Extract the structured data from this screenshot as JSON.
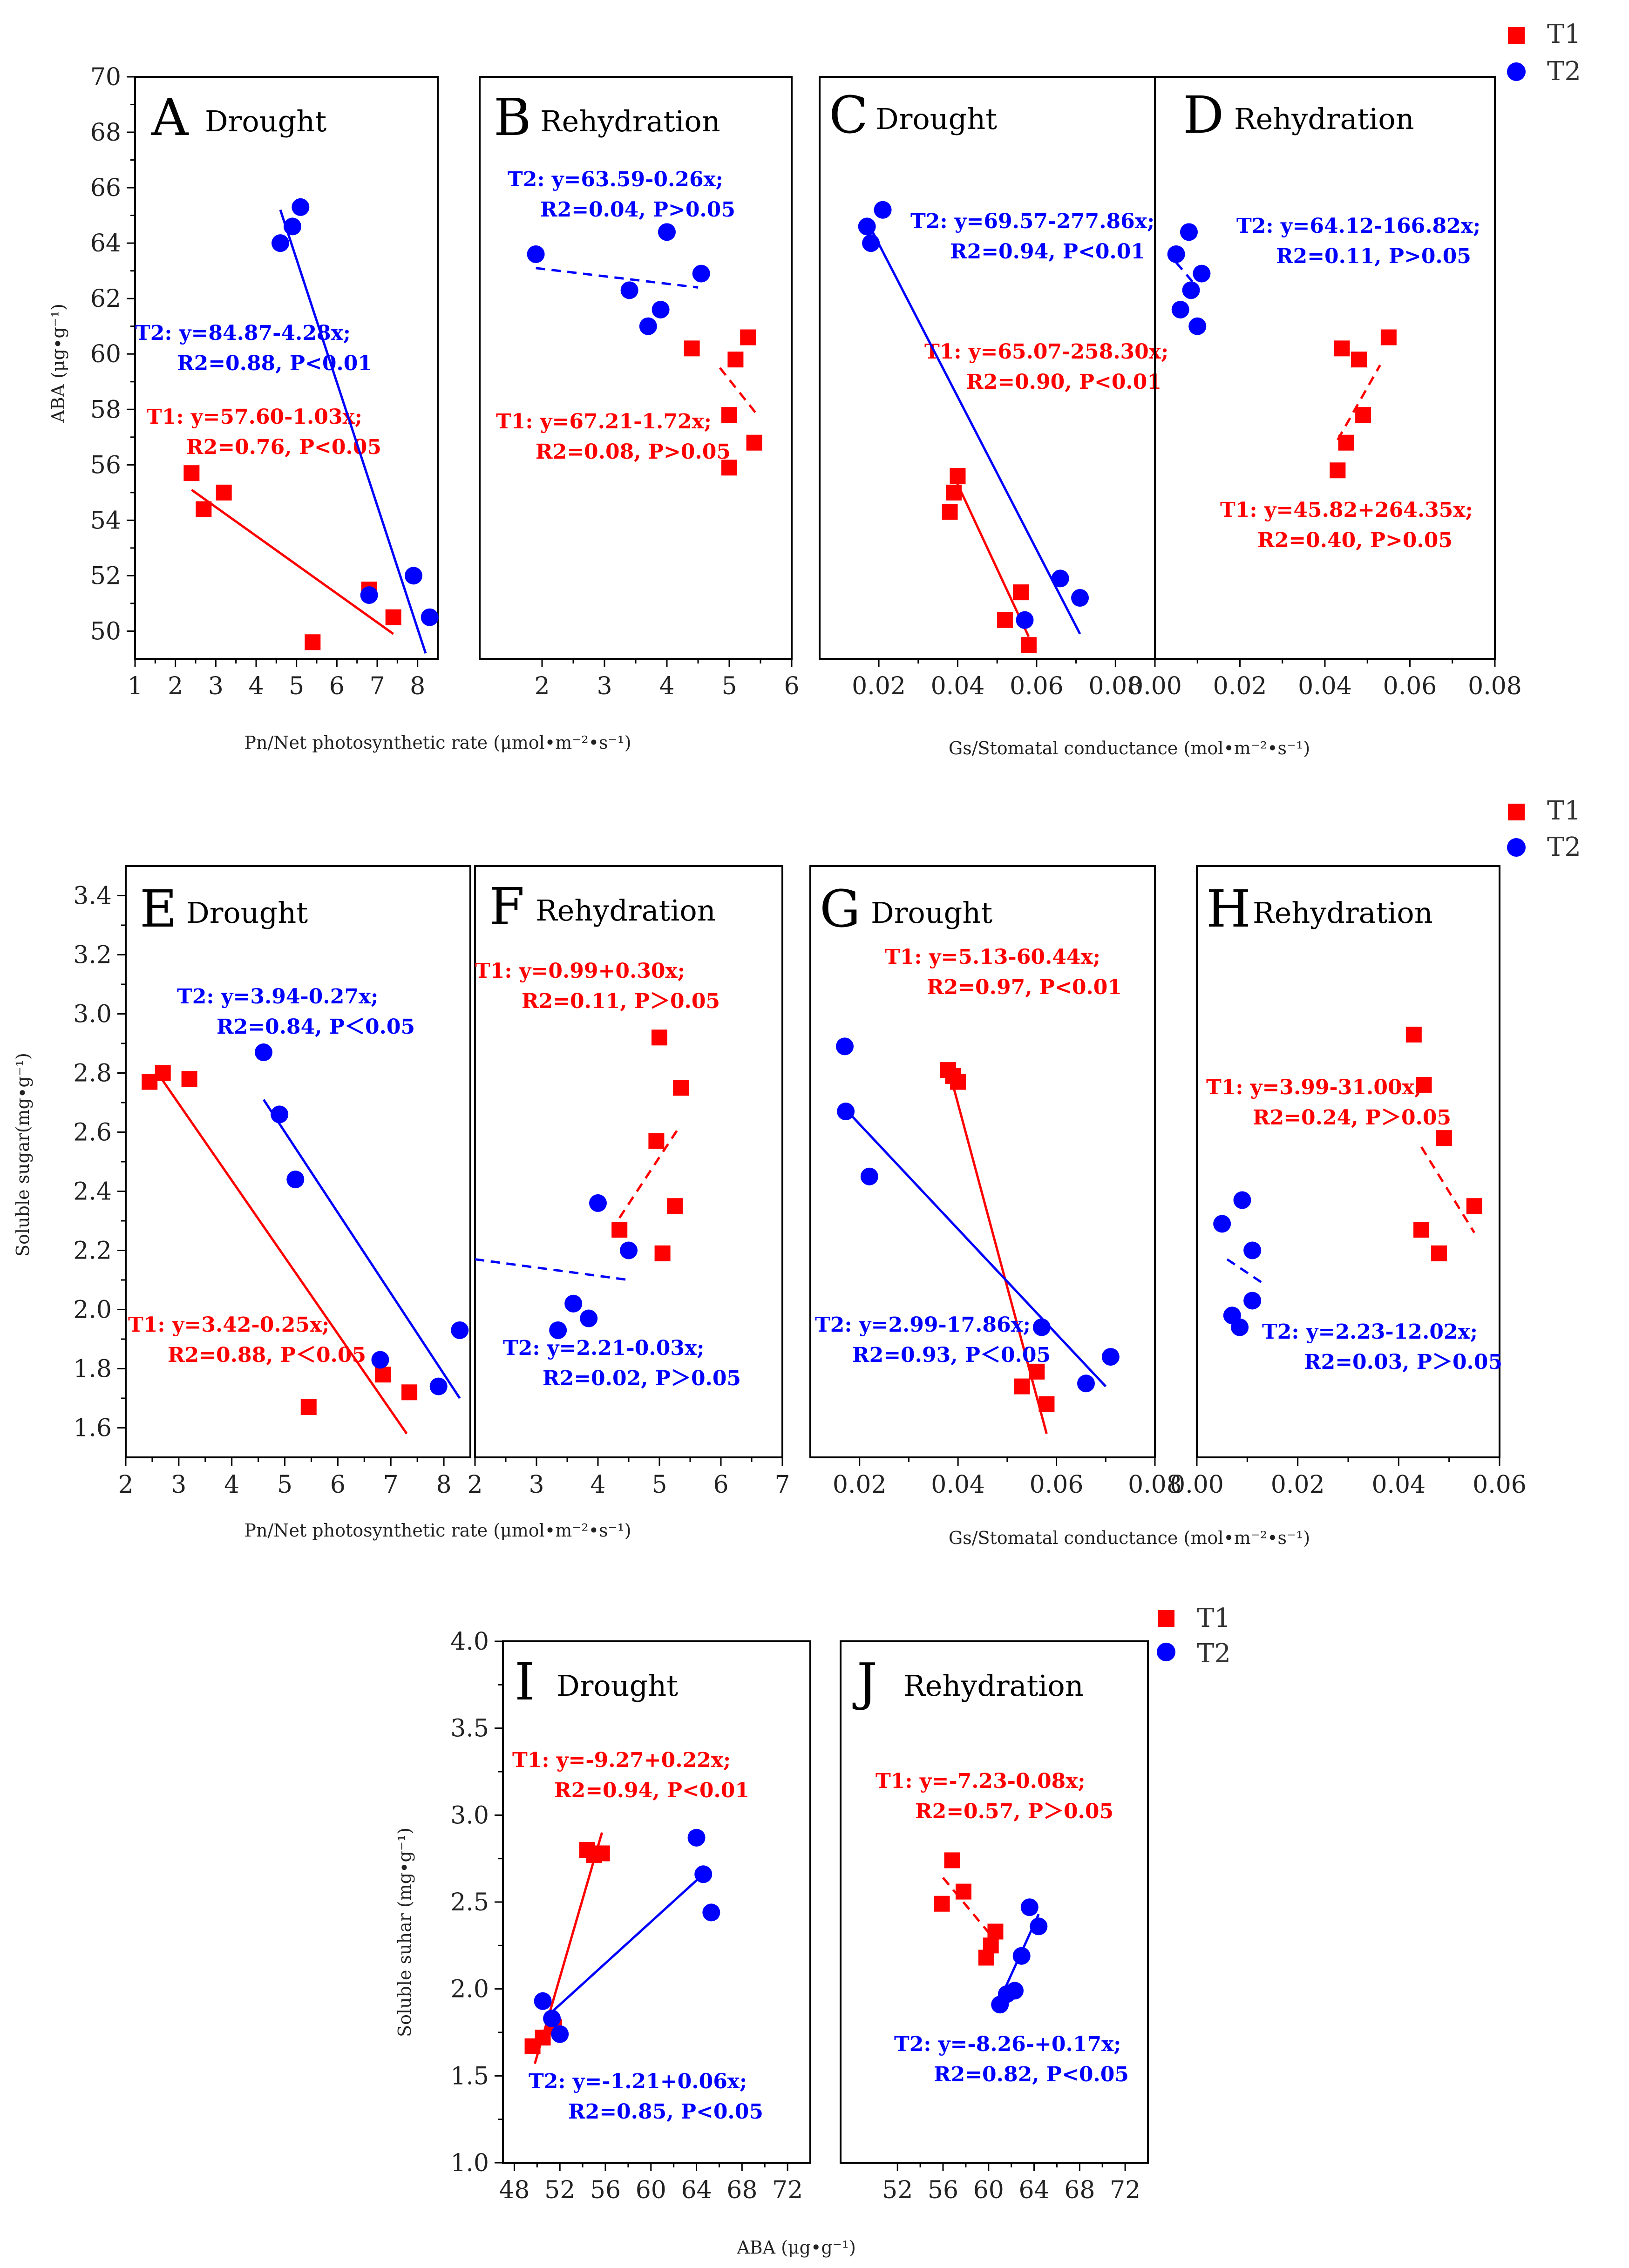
{
  "chart_data": [
    {
      "id": "A",
      "type": "scatter",
      "letter": "A",
      "title": "Drought",
      "xlim": [
        1,
        8.5
      ],
      "ylim": [
        49,
        70
      ],
      "xticks": [
        1,
        2,
        3,
        4,
        5,
        6,
        7,
        8
      ],
      "yticks": [
        50,
        52,
        54,
        56,
        58,
        60,
        62,
        64,
        66,
        68,
        70
      ],
      "series": [
        {
          "name": "T1",
          "color": "#ff0000",
          "marker": "square",
          "x": [
            2.4,
            2.7,
            3.2,
            5.4,
            6.8,
            7.4
          ],
          "y": [
            55.7,
            54.4,
            55.0,
            49.6,
            51.5,
            50.5
          ],
          "fit": {
            "x": [
              2.4,
              7.4
            ],
            "y": [
              55.1,
              49.9
            ],
            "dashed": false
          },
          "equation": "T1: y=57.60-1.03x;",
          "r2": "2=0.76, P<0.05"
        },
        {
          "name": "T2",
          "color": "#0000ff",
          "marker": "circle",
          "x": [
            4.6,
            4.9,
            5.1,
            6.8,
            7.9,
            8.3
          ],
          "y": [
            64.0,
            64.6,
            65.3,
            51.3,
            52.0,
            50.5
          ],
          "fit": {
            "x": [
              4.6,
              8.2
            ],
            "y": [
              65.2,
              49.2
            ],
            "dashed": false
          },
          "equation": "T2: y=84.87-4.28x;",
          "r2": "2=0.88, P<0.01"
        }
      ]
    },
    {
      "id": "B",
      "type": "scatter",
      "letter": "B",
      "title": "Rehydration",
      "xlim": [
        1,
        6
      ],
      "ylim": [
        49,
        70
      ],
      "xticks": [
        2,
        3,
        4,
        5,
        6
      ],
      "yticks": [],
      "series": [
        {
          "name": "T1",
          "color": "#ff0000",
          "marker": "square",
          "x": [
            4.4,
            5.0,
            5.1,
            5.0,
            5.3,
            5.4
          ],
          "y": [
            60.2,
            57.8,
            59.8,
            55.9,
            60.6,
            56.8
          ],
          "fit": {
            "x": [
              4.85,
              5.45
            ],
            "y": [
              59.5,
              57.8
            ],
            "dashed": true
          },
          "equation": "T1: y=67.21-1.72x;",
          "r2": "2=0.08, P>0.05"
        },
        {
          "name": "T2",
          "color": "#0000ff",
          "marker": "circle",
          "x": [
            1.9,
            3.4,
            3.7,
            3.9,
            4.0,
            4.55
          ],
          "y": [
            63.6,
            62.3,
            61.0,
            61.6,
            64.4,
            62.9
          ],
          "fit": {
            "x": [
              1.9,
              4.5
            ],
            "y": [
              63.1,
              62.4
            ],
            "dashed": true
          },
          "equation": "T2: y=63.59-0.26x;",
          "r2": "2=0.04, P>0.05"
        }
      ]
    },
    {
      "id": "C",
      "type": "scatter",
      "letter": "C",
      "title": "Drought",
      "xlim": [
        0.005,
        0.09
      ],
      "ylim": [
        49,
        70
      ],
      "xticks": [
        0.02,
        0.04,
        0.06,
        0.08
      ],
      "yticks": [],
      "series": [
        {
          "name": "T1",
          "color": "#ff0000",
          "marker": "square",
          "x": [
            0.038,
            0.039,
            0.04,
            0.052,
            0.056,
            0.058
          ],
          "y": [
            54.3,
            55.0,
            55.6,
            50.4,
            51.4,
            49.5
          ],
          "fit": {
            "x": [
              0.039,
              0.058
            ],
            "y": [
              55.6,
              49.8
            ],
            "dashed": false
          },
          "equation": "T1: y=65.07-258.30x;",
          "r2": "2=0.90, P<0.01"
        },
        {
          "name": "T2",
          "color": "#0000ff",
          "marker": "circle",
          "x": [
            0.017,
            0.018,
            0.021,
            0.057,
            0.066,
            0.071
          ],
          "y": [
            64.6,
            64.0,
            65.2,
            50.4,
            51.9,
            51.2
          ],
          "fit": {
            "x": [
              0.017,
              0.071
            ],
            "y": [
              64.8,
              49.9
            ],
            "dashed": false
          },
          "equation": "T2: y=69.57-277.86x;",
          "r2": "2=0.94, P<0.01"
        }
      ]
    },
    {
      "id": "D",
      "type": "scatter",
      "letter": "D",
      "title": "Rehydration",
      "xlim": [
        0,
        0.08
      ],
      "ylim": [
        49,
        70
      ],
      "xticks": [
        0.0,
        0.02,
        0.04,
        0.06,
        0.08
      ],
      "yticks": [],
      "series": [
        {
          "name": "T1",
          "color": "#ff0000",
          "marker": "square",
          "x": [
            0.043,
            0.044,
            0.045,
            0.048,
            0.049,
            0.055
          ],
          "y": [
            55.8,
            60.2,
            56.8,
            59.8,
            57.8,
            60.6
          ],
          "fit": {
            "x": [
              0.043,
              0.053
            ],
            "y": [
              56.9,
              59.6
            ],
            "dashed": true
          },
          "equation": "T1: y=45.82+264.35x;",
          "r2": "2=0.40, P>0.05"
        },
        {
          "name": "T2",
          "color": "#0000ff",
          "marker": "circle",
          "x": [
            0.005,
            0.006,
            0.008,
            0.0085,
            0.01,
            0.011
          ],
          "y": [
            63.6,
            61.6,
            64.4,
            62.3,
            61.0,
            62.9
          ],
          "fit": {
            "x": [
              0.005,
              0.01
            ],
            "y": [
              63.3,
              62.4
            ],
            "dashed": true
          },
          "equation": "T2: y=64.12-166.82x;",
          "r2": "2=0.11, P>0.05"
        }
      ]
    },
    {
      "id": "E",
      "type": "scatter",
      "letter": "E",
      "title": "Drought",
      "xlim": [
        2,
        8.5
      ],
      "ylim": [
        1.5,
        3.5
      ],
      "xticks": [
        2,
        3,
        4,
        5,
        6,
        7,
        8
      ],
      "yticks": [
        1.6,
        1.8,
        2.0,
        2.2,
        2.4,
        2.6,
        2.8,
        3.0,
        3.2,
        3.4
      ],
      "series": [
        {
          "name": "T1",
          "color": "#ff0000",
          "marker": "square",
          "x": [
            2.45,
            2.7,
            3.2,
            5.45,
            6.85,
            7.35
          ],
          "y": [
            2.77,
            2.8,
            2.78,
            1.67,
            1.78,
            1.72
          ],
          "fit": {
            "x": [
              2.6,
              7.3
            ],
            "y": [
              2.8,
              1.58
            ],
            "dashed": false
          },
          "equation": "T1: y=3.42-0.25x;",
          "r2": "2=0.88, P＜0.05"
        },
        {
          "name": "T2",
          "color": "#0000ff",
          "marker": "circle",
          "x": [
            4.6,
            4.9,
            5.2,
            6.8,
            7.9,
            8.3
          ],
          "y": [
            2.87,
            2.66,
            2.44,
            1.83,
            1.74,
            1.93
          ],
          "fit": {
            "x": [
              4.6,
              8.3
            ],
            "y": [
              2.71,
              1.7
            ],
            "dashed": false
          },
          "equation": "T2: y=3.94-0.27x;",
          "r2": "2=0.84, P＜0.05"
        }
      ]
    },
    {
      "id": "F",
      "type": "scatter",
      "letter": "F",
      "title": "Rehydration",
      "xlim": [
        2,
        7
      ],
      "ylim": [
        1.5,
        3.5
      ],
      "xticks": [
        2,
        3,
        4,
        5,
        6,
        7
      ],
      "yticks": [],
      "series": [
        {
          "name": "T1",
          "color": "#ff0000",
          "marker": "square",
          "x": [
            4.35,
            4.95,
            5.0,
            5.05,
            5.25,
            5.35
          ],
          "y": [
            2.27,
            2.57,
            2.92,
            2.19,
            2.35,
            2.75
          ],
          "fit": {
            "x": [
              4.35,
              5.3
            ],
            "y": [
              2.31,
              2.61
            ],
            "dashed": true
          },
          "equation": "T1: y=0.99+0.30x;",
          "r2": "2=0.11, P＞0.05"
        },
        {
          "name": "T2",
          "color": "#0000ff",
          "marker": "circle",
          "x": [
            3.35,
            3.6,
            3.85,
            4.0,
            4.5
          ],
          "y": [
            1.93,
            2.02,
            1.97,
            2.36,
            2.2
          ],
          "fit": {
            "x": [
              2.0,
              4.5
            ],
            "y": [
              2.17,
              2.1
            ],
            "dashed": true
          },
          "equation": "T2: y=2.21-0.03x;",
          "r2": "2=0.02, P＞0.05"
        }
      ]
    },
    {
      "id": "G",
      "type": "scatter",
      "letter": "G",
      "title": "Drought",
      "xlim": [
        0.01,
        0.08
      ],
      "ylim": [
        1.5,
        3.5
      ],
      "xticks": [
        0.02,
        0.04,
        0.06,
        0.08
      ],
      "yticks": [],
      "series": [
        {
          "name": "T1",
          "color": "#ff0000",
          "marker": "square",
          "x": [
            0.038,
            0.039,
            0.04,
            0.053,
            0.056,
            0.058
          ],
          "y": [
            2.81,
            2.79,
            2.77,
            1.74,
            1.79,
            1.68
          ],
          "fit": {
            "x": [
              0.038,
              0.058
            ],
            "y": [
              2.82,
              1.58
            ],
            "dashed": false
          },
          "equation": "T1: y=5.13-60.44x;",
          "r2": "2=0.97, P<0.01"
        },
        {
          "name": "T2",
          "color": "#0000ff",
          "marker": "circle",
          "x": [
            0.017,
            0.0172,
            0.022,
            0.057,
            0.066,
            0.071
          ],
          "y": [
            2.89,
            2.67,
            2.45,
            1.94,
            1.75,
            1.84
          ],
          "fit": {
            "x": [
              0.017,
              0.07
            ],
            "y": [
              2.68,
              1.74
            ],
            "dashed": false
          },
          "equation": "T2: y=2.99-17.86x;",
          "r2": "2=0.93, P＜0.05"
        }
      ]
    },
    {
      "id": "H",
      "type": "scatter",
      "letter": "H",
      "title": "Rehydration",
      "xlim": [
        0,
        0.06
      ],
      "ylim": [
        1.5,
        3.5
      ],
      "xticks": [
        0.0,
        0.02,
        0.04,
        0.06
      ],
      "yticks": [],
      "series": [
        {
          "name": "T1",
          "color": "#ff0000",
          "marker": "square",
          "x": [
            0.043,
            0.0445,
            0.045,
            0.048,
            0.049,
            0.055
          ],
          "y": [
            2.93,
            2.27,
            2.76,
            2.19,
            2.58,
            2.35
          ],
          "fit": {
            "x": [
              0.0445,
              0.055
            ],
            "y": [
              2.55,
              2.26
            ],
            "dashed": true
          },
          "equation": "T1: y=3.99-31.00x;",
          "r2": "2=0.24, P＞0.05"
        },
        {
          "name": "T2",
          "color": "#0000ff",
          "marker": "circle",
          "x": [
            0.005,
            0.007,
            0.009,
            0.0085,
            0.011,
            0.011
          ],
          "y": [
            2.29,
            1.98,
            2.37,
            1.94,
            2.2,
            2.03
          ],
          "fit": {
            "x": [
              0.006,
              0.013
            ],
            "y": [
              2.17,
              2.09
            ],
            "dashed": true
          },
          "equation": "T2: y=2.23-12.02x;",
          "r2": "2=0.03, P＞0.05"
        }
      ]
    },
    {
      "id": "I",
      "type": "scatter",
      "letter": "I",
      "title": "Drought",
      "xlim": [
        47,
        74
      ],
      "ylim": [
        1.0,
        4.0
      ],
      "xticks": [
        48,
        52,
        56,
        60,
        64,
        68,
        72
      ],
      "yticks": [
        1.0,
        1.5,
        2.0,
        2.5,
        3.0,
        3.5,
        4.0
      ],
      "series": [
        {
          "name": "T1",
          "color": "#ff0000",
          "marker": "square",
          "x": [
            49.6,
            50.5,
            51.5,
            54.4,
            55.0,
            55.7
          ],
          "y": [
            1.67,
            1.72,
            1.78,
            2.8,
            2.77,
            2.78
          ],
          "fit": {
            "x": [
              49.8,
              55.7
            ],
            "y": [
              1.57,
              2.9
            ],
            "dashed": false
          },
          "equation": "T1: y=-9.27+0.22x;",
          "r2": "2=0.94, P<0.01"
        },
        {
          "name": "T2",
          "color": "#0000ff",
          "marker": "circle",
          "x": [
            50.5,
            51.3,
            52.0,
            64.0,
            64.6,
            65.3
          ],
          "y": [
            1.93,
            1.83,
            1.74,
            2.87,
            2.66,
            2.44
          ],
          "fit": {
            "x": [
              51.0,
              64.6
            ],
            "y": [
              1.85,
              2.66
            ],
            "dashed": false
          },
          "equation": "T2: y=-1.21+0.06x;",
          "r2": "2=0.85, P<0.05"
        }
      ]
    },
    {
      "id": "J",
      "type": "scatter",
      "letter": "J",
      "title": "Rehydration",
      "xlim": [
        47,
        74
      ],
      "ylim": [
        1.0,
        4.0
      ],
      "xticks": [
        52,
        56,
        60,
        64,
        68,
        72
      ],
      "yticks": [],
      "series": [
        {
          "name": "T1",
          "color": "#ff0000",
          "marker": "square",
          "x": [
            55.9,
            56.8,
            57.8,
            59.8,
            60.2,
            60.6
          ],
          "y": [
            2.49,
            2.74,
            2.56,
            2.18,
            2.25,
            2.33
          ],
          "fit": {
            "x": [
              56.0,
              60.7
            ],
            "y": [
              2.64,
              2.27
            ],
            "dashed": true
          },
          "equation": "T1: y=-7.23-0.08x;",
          "r2": "2=0.57, P＞0.05"
        },
        {
          "name": "T2",
          "color": "#0000ff",
          "marker": "circle",
          "x": [
            61.0,
            61.6,
            62.3,
            62.9,
            63.6,
            64.4
          ],
          "y": [
            1.91,
            1.97,
            1.99,
            2.19,
            2.47,
            2.36
          ],
          "fit": {
            "x": [
              60.8,
              64.4
            ],
            "y": [
              1.91,
              2.43
            ],
            "dashed": false
          },
          "equation": "T2: y=-8.26-+0.17x;",
          "r2": "2=0.82, P<0.05"
        }
      ]
    }
  ],
  "labels": {
    "row1_ylabel": "ABA (μg•g⁻¹)",
    "row1_xlabel_left": "Pn/Net photosynthetic rate (μmol•m⁻²•s⁻¹)",
    "row1_xlabel_right": "Gs/Stomatal conductance (mol•m⁻²•s⁻¹)",
    "row2_ylabel": "Soluble sugar(mg•g⁻¹)",
    "row2_xlabel_left": "Pn/Net photosynthetic rate (μmol•m⁻²•s⁻¹)",
    "row2_xlabel_right": "Gs/Stomatal conductance (mol•m⁻²•s⁻¹)",
    "row3_ylabel": "Soluble suhar (mg•g⁻¹)",
    "row3_xlabel": "ABA (μg•g⁻¹)"
  },
  "legend": {
    "t1": "T1",
    "t2": "T2",
    "t1_color": "#ff0000",
    "t2_color": "#0000ff"
  }
}
